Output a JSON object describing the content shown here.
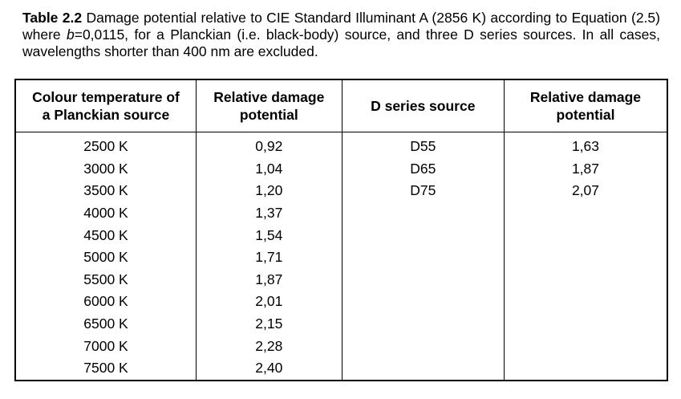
{
  "caption": {
    "label": "Table 2.2",
    "text_before_var": " Damage potential relative to CIE Standard Illuminant A (2856 K) according to Equation (2.5) where ",
    "var": "b",
    "text_after_var": "=0,0115, for a Planckian (i.e. black-body) source, and three D series sources. In all cases, wavelengths shorter than 400 nm are excluded."
  },
  "table": {
    "headers": {
      "col1_line1": "Colour temperature of",
      "col1_line2": "a Planckian source",
      "col2_line1": "Relative damage",
      "col2_line2": "potential",
      "col3": "D series source",
      "col4_line1": "Relative damage",
      "col4_line2": "potential"
    },
    "rows": [
      [
        "2500 K",
        "0,92",
        "D55",
        "1,63"
      ],
      [
        "3000 K",
        "1,04",
        "D65",
        "1,87"
      ],
      [
        "3500 K",
        "1,20",
        "D75",
        "2,07"
      ],
      [
        "4000 K",
        "1,37",
        "",
        ""
      ],
      [
        "4500 K",
        "1,54",
        "",
        ""
      ],
      [
        "5000 K",
        "1,71",
        "",
        ""
      ],
      [
        "5500 K",
        "1,87",
        "",
        ""
      ],
      [
        "6000 K",
        "2,01",
        "",
        ""
      ],
      [
        "6500 K",
        "2,15",
        "",
        ""
      ],
      [
        "7000 K",
        "2,28",
        "",
        ""
      ],
      [
        "7500 K",
        "2,40",
        "",
        ""
      ]
    ]
  }
}
